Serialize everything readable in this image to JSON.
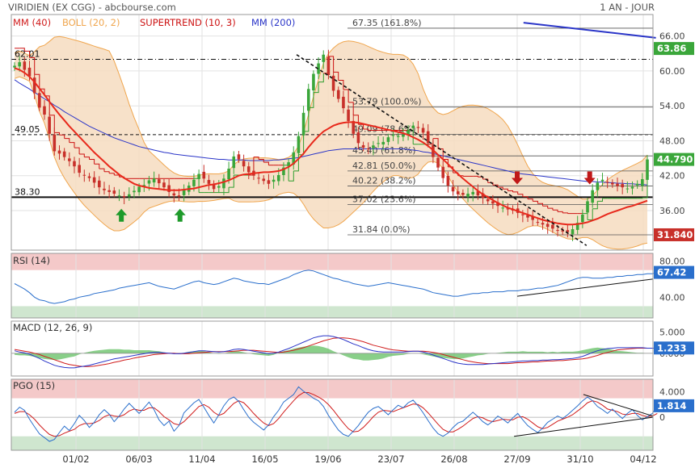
{
  "header": {
    "title": "VIRIDIEN (EX CGG) - abcbourse.com",
    "period": "1 AN - JOUR"
  },
  "colors": {
    "mm40": "#e8291c",
    "boll": "#f0a64e",
    "boll_fill": "#f6dcc0",
    "supertrend": "#cc1111",
    "supertrend_up": "#2e9e2e",
    "mm200": "#2a35c8",
    "candle_up": "#3aa63a",
    "candle_down": "#c8302a",
    "rsi_line": "#2a6fcc",
    "macd_line": "#2a35c8",
    "macd_signal": "#d01c1c",
    "macd_hist": "#6cc36c",
    "pgo_blue": "#2a6fcc",
    "pgo_red": "#d01c1c",
    "zone_high": "#f4c9c9",
    "zone_low": "#cfe6cf",
    "price_tag": "#3aa63a",
    "low_tag": "#c8302a"
  },
  "chart_data": [
    {
      "type": "candlestick",
      "id": "price",
      "legend": [
        {
          "label": "MM (40)",
          "color": "#d01c1c"
        },
        {
          "label": "BOLL (20, 2)",
          "color": "#f0a64e"
        },
        {
          "label": "SUPERTREND (10, 3)",
          "color": "#cc1111"
        },
        {
          "label": "MM (200)",
          "color": "#2a35c8"
        }
      ],
      "x_ticks": [
        "01/02",
        "06/03",
        "11/04",
        "16/05",
        "19/06",
        "23/07",
        "26/08",
        "27/09",
        "31/10",
        "04/12"
      ],
      "y_ticks": [
        36.0,
        42.0,
        48.0,
        54.0,
        60.0,
        66.0
      ],
      "ylim": [
        29.2,
        69.7
      ],
      "last_price": "44.790",
      "price_tags": [
        {
          "value": 63.86,
          "label": "63.86",
          "color": "#3aa63a"
        },
        {
          "value": 31.84,
          "label": "31.840",
          "color": "#c8302a"
        }
      ],
      "horizontal_levels": [
        {
          "value": 62.01,
          "label": "62.01",
          "style": "dashdot"
        },
        {
          "value": 49.05,
          "label": "49.05",
          "style": "dash"
        },
        {
          "value": 38.3,
          "label": "38.30",
          "style": "solid"
        }
      ],
      "fibonacci": [
        {
          "value": 67.35,
          "label": "67.35  (161.8%)"
        },
        {
          "value": 53.79,
          "label": "53.79  (100.0%)"
        },
        {
          "value": 49.09,
          "label": "49.09  (78.6%)"
        },
        {
          "value": 45.4,
          "label": "45.40  (61.8%)"
        },
        {
          "value": 42.81,
          "label": "42.81  (50.0%)"
        },
        {
          "value": 40.22,
          "label": "40.22  (38.2%)"
        },
        {
          "value": 37.02,
          "label": "37.02  (23.6%)"
        },
        {
          "value": 31.84,
          "label": "31.84  (0.0%)"
        }
      ],
      "arrows": [
        {
          "direction": "up",
          "x_tick_index": 0.72,
          "value": 36.3
        },
        {
          "direction": "up",
          "x_tick_index": 1.65,
          "value": 36.3
        },
        {
          "direction": "down",
          "x_tick_index": 7.0,
          "value": 40.5
        },
        {
          "direction": "down",
          "x_tick_index": 8.15,
          "value": 40.5
        }
      ],
      "trendline": {
        "from": {
          "x_tick_index": 3.5,
          "value": 62.8
        },
        "to": {
          "x_tick_index": 8.1,
          "value": 30.0
        }
      },
      "mm200_segment": {
        "from": {
          "x_tick_index": 7.1,
          "value": 68.3
        },
        "to": {
          "x_tick_index": 9.2,
          "value": 65.7
        }
      },
      "close": [
        60.9,
        61.5,
        60.2,
        59.1,
        56.2,
        53.7,
        52.5,
        49.2,
        46.2,
        45.8,
        45.2,
        44.5,
        43.6,
        42.5,
        42.0,
        41.6,
        40.8,
        40.0,
        39.5,
        39.2,
        38.9,
        38.6,
        38.3,
        38.8,
        39.4,
        40.1,
        40.4,
        41.2,
        41.5,
        40.7,
        40.0,
        39.2,
        38.6,
        38.4,
        39.6,
        40.3,
        41.3,
        42.3,
        41.5,
        40.6,
        39.7,
        40.2,
        41.5,
        43.2,
        45.3,
        44.8,
        43.6,
        42.6,
        42.0,
        41.6,
        41.1,
        40.6,
        41.3,
        42.1,
        43.4,
        44.3,
        46.0,
        48.8,
        52.8,
        56.9,
        59.5,
        61.3,
        62.8,
        59.3,
        56.6,
        55.2,
        53.6,
        51.4,
        49.2,
        47.6,
        46.8,
        46.6,
        47.2,
        47.6,
        47.8,
        48.6,
        49.0,
        48.8,
        49.0,
        49.8,
        50.6,
        50.2,
        49.4,
        47.6,
        45.2,
        43.4,
        41.6,
        40.3,
        39.3,
        38.8,
        38.7,
        38.9,
        39.2,
        38.6,
        38.2,
        37.6,
        37.2,
        36.8,
        36.5,
        36.2,
        36.0,
        35.6,
        35.2,
        34.8,
        34.4,
        34.0,
        33.6,
        33.2,
        32.9,
        32.6,
        32.4,
        32.3,
        32.8,
        33.9,
        35.3,
        37.6,
        39.5,
        40.8,
        41.3,
        40.9,
        40.5,
        40.2,
        40.0,
        39.8,
        40.1,
        40.6,
        41.4,
        44.79
      ],
      "ma40": [
        60.5,
        60.2,
        59.7,
        59.0,
        58.1,
        57.0,
        55.9,
        54.7,
        53.6,
        52.5,
        51.5,
        50.5,
        49.6,
        48.7,
        47.8,
        46.9,
        46.0,
        45.2,
        44.4,
        43.6,
        42.9,
        42.2,
        41.6,
        41.1,
        40.6,
        40.3,
        40.1,
        39.9,
        39.8,
        39.7,
        39.6,
        39.5,
        39.5,
        39.5,
        39.6,
        39.7,
        39.8,
        40.0,
        40.2,
        40.4,
        40.5,
        40.7,
        40.9,
        41.2,
        41.6,
        42.0,
        42.2,
        42.3,
        42.4,
        42.5,
        42.6,
        42.6,
        42.7,
        42.8,
        43.1,
        43.5,
        44.1,
        44.9,
        45.8,
        46.9,
        47.9,
        48.8,
        49.6,
        50.1,
        50.6,
        50.9,
        51.1,
        51.2,
        51.2,
        51.1,
        50.9,
        50.7,
        50.5,
        50.3,
        50.1,
        49.9,
        49.7,
        49.5,
        49.3,
        49.0,
        48.6,
        48.2,
        47.7,
        47.1,
        46.4,
        45.6,
        44.8,
        44.0,
        43.1,
        42.3,
        41.5,
        40.8,
        40.1,
        39.4,
        38.8,
        38.3,
        37.8,
        37.3,
        36.9,
        36.5,
        36.2,
        35.9,
        35.6,
        35.3,
        35.0,
        34.7,
        34.4,
        34.2,
        34.0,
        33.8,
        33.7,
        33.6,
        33.6,
        33.7,
        33.8,
        34.0,
        34.3,
        34.6,
        35.0,
        35.4,
        35.7,
        36.0,
        36.3,
        36.6,
        36.8,
        37.1,
        37.4,
        37.7
      ],
      "ma200": [
        58.5,
        57.9,
        57.4,
        56.9,
        56.3,
        55.8,
        55.2,
        54.7,
        54.1,
        53.6,
        53.0,
        52.5,
        52.0,
        51.5,
        51.0,
        50.5,
        50.1,
        49.7,
        49.3,
        48.9,
        48.5,
        48.2,
        47.9,
        47.6,
        47.3,
        47.0,
        46.8,
        46.6,
        46.4,
        46.2,
        46.0,
        45.9,
        45.7,
        45.6,
        45.5,
        45.4,
        45.3,
        45.2,
        45.1,
        45.0,
        44.9,
        44.8,
        44.8,
        44.7,
        44.7,
        44.7,
        44.7,
        44.6,
        44.6,
        44.6,
        44.6,
        44.6,
        44.7,
        44.7,
        44.8,
        44.9,
        45.0,
        45.1,
        45.3,
        45.5,
        45.7,
        45.9,
        46.1,
        46.3,
        46.4,
        46.5,
        46.6,
        46.6,
        46.6,
        46.6,
        46.6,
        46.6,
        46.6,
        46.6,
        46.6,
        46.6,
        46.6,
        46.6,
        46.6,
        46.5,
        46.4,
        46.3,
        46.1,
        46.0,
        45.8,
        45.6,
        45.4,
        45.2,
        45.0,
        44.8,
        44.6,
        44.4,
        44.2,
        44.0,
        43.8,
        43.6,
        43.4,
        43.2,
        43.0,
        42.8,
        42.6,
        42.4,
        42.3,
        42.2,
        42.1,
        42.0,
        41.9,
        41.8,
        41.7,
        41.6,
        41.5,
        41.4,
        41.3,
        41.2,
        41.1,
        41.0,
        41.0,
        40.9,
        40.9,
        40.8,
        40.8,
        40.7,
        40.7,
        40.6,
        40.6,
        40.5,
        40.5,
        40.4
      ]
    },
    {
      "type": "line",
      "id": "rsi",
      "legend": [
        {
          "label": "RSI (14)",
          "color": "#333333"
        }
      ],
      "y_ticks": [
        40.0,
        80.0
      ],
      "y_tick_labels": [
        "40.00",
        "80.00"
      ],
      "ylim": [
        17.0,
        88.5
      ],
      "last_value": "67.42",
      "zones": [
        {
          "from": 70,
          "to": 100,
          "color": "#f4c9c9"
        },
        {
          "from": 0,
          "to": 30,
          "color": "#cfe6cf"
        }
      ],
      "values": [
        55,
        52,
        49,
        45,
        40,
        37,
        36,
        34,
        33,
        34,
        35,
        37,
        38,
        40,
        41,
        42,
        44,
        45,
        46,
        47,
        48,
        50,
        51,
        52,
        53,
        54,
        55,
        56,
        54,
        52,
        51,
        50,
        49,
        51,
        53,
        55,
        57,
        58,
        56,
        55,
        54,
        55,
        57,
        59,
        61,
        60,
        58,
        57,
        56,
        55,
        55,
        54,
        56,
        58,
        60,
        62,
        65,
        67,
        69,
        70,
        69,
        67,
        65,
        63,
        61,
        60,
        58,
        57,
        55,
        54,
        53,
        52,
        53,
        54,
        55,
        56,
        55,
        54,
        53,
        52,
        51,
        50,
        49,
        47,
        45,
        44,
        43,
        42,
        41,
        41,
        42,
        43,
        44,
        44,
        45,
        45,
        46,
        46,
        46,
        47,
        47,
        47,
        48,
        48,
        49,
        50,
        50,
        51,
        52,
        53,
        55,
        57,
        59,
        61,
        62,
        62,
        61,
        61,
        61,
        62,
        62,
        63,
        63,
        64,
        64,
        65,
        65,
        66,
        66,
        67.42
      ]
    },
    {
      "type": "line",
      "id": "macd",
      "legend": [
        {
          "label": "MACD (12, 26, 9)",
          "color": "#333333"
        }
      ],
      "y_ticks": [
        5.0,
        0.0
      ],
      "y_tick_labels": [
        "5.000",
        "0.000"
      ],
      "ylim": [
        -5.3,
        7.5
      ],
      "last_value": "1.233",
      "macd": [
        0.6,
        0.3,
        0.1,
        -0.2,
        -0.7,
        -1.2,
        -1.8,
        -2.3,
        -2.8,
        -3.1,
        -3.3,
        -3.4,
        -3.4,
        -3.2,
        -3.0,
        -2.8,
        -2.5,
        -2.2,
        -1.9,
        -1.6,
        -1.3,
        -1.1,
        -0.9,
        -0.7,
        -0.5,
        -0.3,
        -0.1,
        0.1,
        0.2,
        0.2,
        0.1,
        0.0,
        -0.1,
        -0.1,
        0.0,
        0.2,
        0.4,
        0.6,
        0.6,
        0.5,
        0.4,
        0.3,
        0.4,
        0.6,
        0.9,
        1.0,
        0.9,
        0.7,
        0.5,
        0.3,
        0.1,
        -0.1,
        0.0,
        0.3,
        0.7,
        1.1,
        1.6,
        2.1,
        2.6,
        3.1,
        3.6,
        3.9,
        4.1,
        4.1,
        3.9,
        3.6,
        3.2,
        2.7,
        2.2,
        1.8,
        1.3,
        0.9,
        0.6,
        0.4,
        0.3,
        0.3,
        0.3,
        0.3,
        0.3,
        0.4,
        0.5,
        0.5,
        0.3,
        0.0,
        -0.4,
        -0.8,
        -1.2,
        -1.6,
        -2.0,
        -2.3,
        -2.5,
        -2.6,
        -2.6,
        -2.6,
        -2.6,
        -2.5,
        -2.4,
        -2.3,
        -2.2,
        -2.1,
        -2.0,
        -1.9,
        -1.8,
        -1.8,
        -1.7,
        -1.7,
        -1.6,
        -1.6,
        -1.5,
        -1.5,
        -1.4,
        -1.3,
        -1.2,
        -1.0,
        -0.7,
        -0.3,
        0.2,
        0.6,
        0.9,
        1.1,
        1.2,
        1.3,
        1.3,
        1.3,
        1.3,
        1.3,
        1.3,
        1.2,
        1.2,
        1.23
      ],
      "signal": [
        0.9,
        0.7,
        0.5,
        0.3,
        0.0,
        -0.3,
        -0.7,
        -1.1,
        -1.5,
        -1.9,
        -2.3,
        -2.6,
        -2.8,
        -3.0,
        -3.1,
        -3.1,
        -3.0,
        -2.8,
        -2.6,
        -2.4,
        -2.1,
        -1.9,
        -1.6,
        -1.4,
        -1.1,
        -0.9,
        -0.7,
        -0.5,
        -0.3,
        -0.2,
        -0.1,
        0.0,
        0.0,
        -0.1,
        -0.1,
        -0.1,
        0.0,
        0.1,
        0.2,
        0.3,
        0.4,
        0.4,
        0.4,
        0.4,
        0.5,
        0.6,
        0.7,
        0.7,
        0.7,
        0.6,
        0.5,
        0.4,
        0.3,
        0.2,
        0.3,
        0.5,
        0.7,
        1.0,
        1.3,
        1.7,
        2.1,
        2.5,
        2.9,
        3.2,
        3.5,
        3.6,
        3.6,
        3.5,
        3.3,
        3.0,
        2.7,
        2.3,
        1.9,
        1.6,
        1.3,
        1.0,
        0.8,
        0.7,
        0.6,
        0.5,
        0.5,
        0.5,
        0.5,
        0.4,
        0.2,
        0.0,
        -0.3,
        -0.6,
        -0.9,
        -1.2,
        -1.5,
        -1.8,
        -2.0,
        -2.2,
        -2.3,
        -2.4,
        -2.4,
        -2.4,
        -2.4,
        -2.4,
        -2.3,
        -2.2,
        -2.2,
        -2.1,
        -2.0,
        -2.0,
        -1.9,
        -1.8,
        -1.8,
        -1.7,
        -1.7,
        -1.6,
        -1.5,
        -1.4,
        -1.3,
        -1.1,
        -0.8,
        -0.5,
        -0.1,
        0.2,
        0.5,
        0.8,
        0.9,
        1.0,
        1.1,
        1.2,
        1.2,
        1.2,
        1.2,
        1.2
      ]
    },
    {
      "type": "line",
      "id": "pgo",
      "legend": [
        {
          "label": "PGO (15)",
          "color": "#333333"
        }
      ],
      "y_ticks": [
        4.0,
        0.0
      ],
      "y_tick_labels": [
        "4.000",
        "0"
      ],
      "ylim": [
        -5.2,
        6.0
      ],
      "last_value": "1.814",
      "zones": [
        {
          "from": 3,
          "to": 10,
          "color": "#f4c9c9"
        },
        {
          "from": -10,
          "to": -3,
          "color": "#cfe6cf"
        }
      ],
      "pgo": [
        0.8,
        1.6,
        1.1,
        -0.3,
        -1.5,
        -2.6,
        -3.2,
        -3.8,
        -3.5,
        -2.4,
        -1.4,
        -2.1,
        -1.0,
        0.3,
        -0.5,
        -1.6,
        -0.8,
        0.4,
        1.2,
        0.5,
        -0.7,
        0.2,
        1.3,
        2.2,
        1.4,
        0.6,
        1.5,
        2.4,
        1.2,
        -0.4,
        -1.3,
        -0.6,
        -2.2,
        -1.3,
        0.7,
        1.5,
        2.3,
        2.8,
        1.6,
        0.3,
        -0.9,
        0.4,
        1.8,
        2.8,
        3.2,
        2.5,
        1.2,
        0.0,
        -0.8,
        -1.4,
        -2.0,
        -1.2,
        0.1,
        1.1,
        2.4,
        3.0,
        3.6,
        4.8,
        4.1,
        3.6,
        3.0,
        2.6,
        1.7,
        0.3,
        -0.9,
        -2.0,
        -2.7,
        -3.0,
        -2.2,
        -1.3,
        -0.2,
        0.8,
        1.4,
        1.7,
        1.1,
        0.4,
        1.2,
        1.9,
        1.5,
        2.3,
        2.7,
        1.8,
        0.7,
        -0.5,
        -1.7,
        -2.6,
        -3.0,
        -2.5,
        -1.6,
        -0.9,
        -0.6,
        0.1,
        0.8,
        0.1,
        -0.7,
        -1.2,
        -0.6,
        0.2,
        -0.3,
        -0.9,
        -0.1,
        0.6,
        -0.4,
        -1.3,
        -1.9,
        -2.4,
        -1.7,
        -0.8,
        -0.3,
        0.2,
        -0.2,
        0.4,
        1.1,
        1.8,
        2.6,
        3.2,
        2.6,
        1.7,
        1.2,
        0.6,
        1.3,
        0.5,
        -0.2,
        0.6,
        1.2,
        0.3,
        -0.4,
        0.1,
        0.6,
        1.814
      ],
      "signal": [
        0.6,
        0.9,
        0.9,
        0.4,
        -0.3,
        -1.2,
        -2.0,
        -2.7,
        -3.0,
        -2.9,
        -2.5,
        -2.2,
        -1.9,
        -1.3,
        -1.0,
        -1.0,
        -0.9,
        -0.5,
        0.1,
        0.4,
        0.2,
        0.1,
        0.4,
        1.0,
        1.3,
        1.1,
        1.1,
        1.5,
        1.5,
        0.9,
        0.1,
        -0.4,
        -1.0,
        -1.2,
        -0.7,
        0.1,
        0.9,
        1.7,
        2.0,
        1.6,
        0.8,
        0.3,
        0.6,
        1.4,
        2.2,
        2.6,
        2.3,
        1.5,
        0.6,
        -0.2,
        -0.9,
        -1.3,
        -1.0,
        -0.2,
        0.8,
        1.7,
        2.6,
        3.4,
        3.9,
        3.9,
        3.6,
        3.2,
        2.7,
        2.0,
        1.1,
        0.1,
        -0.9,
        -1.8,
        -2.3,
        -2.2,
        -1.6,
        -0.8,
        0.1,
        0.8,
        1.1,
        1.0,
        0.9,
        1.2,
        1.5,
        1.8,
        2.1,
        2.0,
        1.5,
        0.7,
        -0.2,
        -1.1,
        -1.9,
        -2.3,
        -2.3,
        -1.9,
        -1.4,
        -0.8,
        -0.2,
        0.1,
        -0.1,
        -0.5,
        -0.7,
        -0.5,
        -0.3,
        -0.4,
        -0.4,
        0.0,
        0.1,
        -0.3,
        -0.9,
        -1.5,
        -1.8,
        -1.6,
        -1.1,
        -0.6,
        -0.3,
        0.0,
        0.4,
        1.0,
        1.6,
        2.3,
        2.6,
        2.4,
        1.9,
        1.3,
        1.1,
        0.9,
        0.5,
        0.4,
        0.6,
        0.6,
        0.3,
        0.1,
        0.2,
        0.6
      ],
      "triangle": {
        "top": {
          "from": {
            "x_tick_index": 8.05,
            "value": 3.6
          },
          "to": {
            "x_tick_index": 9.15,
            "value": 0.2
          }
        },
        "bottom": {
          "from": {
            "x_tick_index": 6.95,
            "value": -3.0
          },
          "to": {
            "x_tick_index": 9.15,
            "value": 0.0
          }
        }
      }
    }
  ]
}
